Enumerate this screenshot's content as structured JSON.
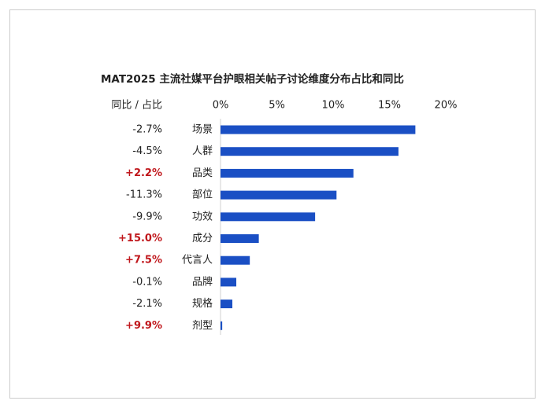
{
  "chart_data": {
    "type": "bar",
    "orientation": "horizontal",
    "title": "MAT2025 主流社媒平台护眼相关帖子讨论维度分布占比和同比",
    "label_header": "同比 / 占比",
    "categories": [
      "场景",
      "人群",
      "品类",
      "部位",
      "功效",
      "成分",
      "代言人",
      "品牌",
      "规格",
      "剂型"
    ],
    "values": [
      17.3,
      15.8,
      11.8,
      10.3,
      8.4,
      3.4,
      2.6,
      1.4,
      1.05,
      0.15
    ],
    "color": "#1a4fc4",
    "yoy": [
      "-2.7%",
      "-4.5%",
      "+2.2%",
      "-11.3%",
      "-9.9%",
      "+15.0%",
      "+7.5%",
      "-0.1%",
      "-2.1%",
      "+9.9%"
    ],
    "yoy_up_color": "#c0171c",
    "yoy_down_color": "#222222",
    "xlim": [
      0,
      20
    ],
    "xticks": [
      {
        "value": 0,
        "label": "0%"
      },
      {
        "value": 5,
        "label": "5%"
      },
      {
        "value": 10,
        "label": "10%"
      },
      {
        "value": 15,
        "label": "15%"
      },
      {
        "value": 20,
        "label": "20%"
      }
    ]
  }
}
